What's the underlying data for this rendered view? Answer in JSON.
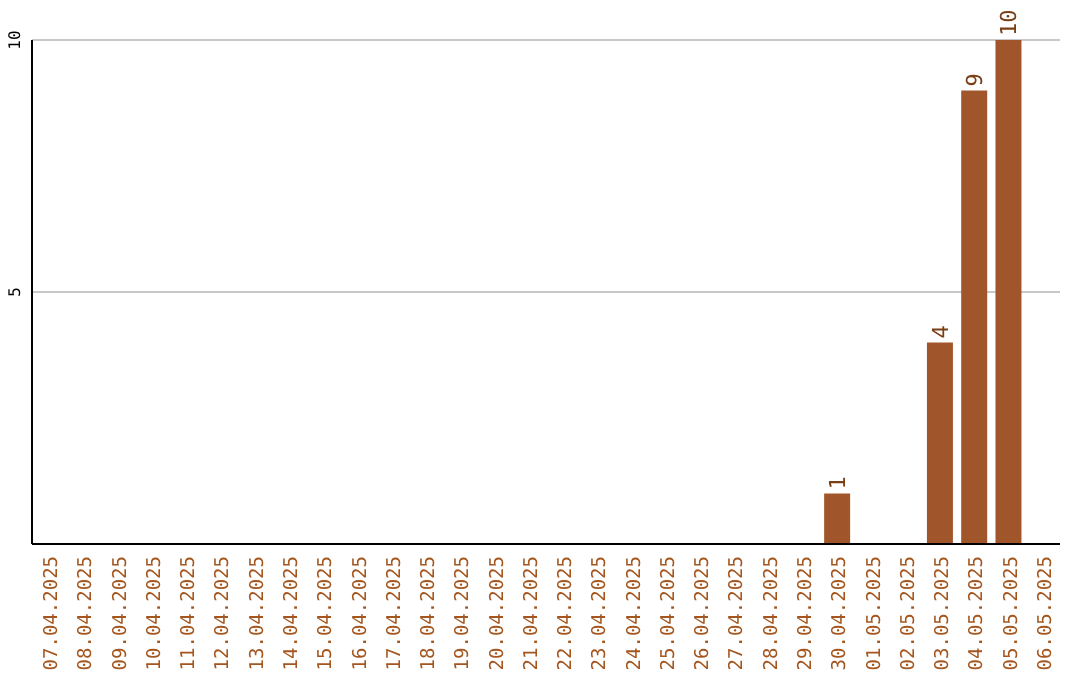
{
  "chart_data": {
    "type": "bar",
    "categories": [
      "07.04.2025",
      "08.04.2025",
      "09.04.2025",
      "10.04.2025",
      "11.04.2025",
      "12.04.2025",
      "13.04.2025",
      "14.04.2025",
      "15.04.2025",
      "16.04.2025",
      "17.04.2025",
      "18.04.2025",
      "19.04.2025",
      "20.04.2025",
      "21.04.2025",
      "22.04.2025",
      "23.04.2025",
      "24.04.2025",
      "25.04.2025",
      "26.04.2025",
      "27.04.2025",
      "28.04.2025",
      "29.04.2025",
      "30.04.2025",
      "01.05.2025",
      "02.05.2025",
      "03.05.2025",
      "04.05.2025",
      "05.05.2025",
      "06.05.2025"
    ],
    "values": [
      0,
      0,
      0,
      0,
      0,
      0,
      0,
      0,
      0,
      0,
      0,
      0,
      0,
      0,
      0,
      0,
      0,
      0,
      0,
      0,
      0,
      0,
      0,
      1,
      0,
      0,
      4,
      9,
      10,
      0
    ],
    "value_labels": [
      null,
      null,
      null,
      null,
      null,
      null,
      null,
      null,
      null,
      null,
      null,
      null,
      null,
      null,
      null,
      null,
      null,
      null,
      null,
      null,
      null,
      null,
      null,
      "1",
      null,
      null,
      "4",
      "9",
      "10",
      null
    ],
    "color": "#a0562a",
    "ylim": [
      0,
      10
    ],
    "yticks": [
      5,
      10
    ],
    "grid": "y"
  }
}
